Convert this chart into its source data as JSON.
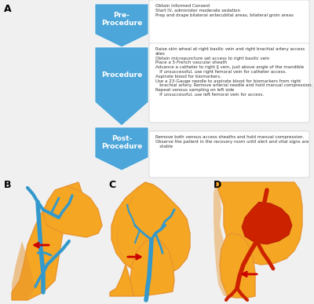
{
  "bg_color": "#f5f5f5",
  "label_A": "A",
  "label_B": "B",
  "label_C": "C",
  "label_D": "D",
  "chevron_color": "#4da6d9",
  "chevron_labels": [
    "Pre-\nProcedure",
    "Procedure",
    "Post-\nProcedure"
  ],
  "box_bg": "#ffffff",
  "box_text": [
    "Obtain Informed Consent\nStart IV, administer moderate sedation\nPrep and drape bilateral antecubital areas, bilateral groin areas",
    "Raise skin wheal at right basilic vein and right brachial artery access sites\nObtain micropuncture set access to right basilic vein\nPlace a 5-French vascular sheath\nAdvance a catheter to right IJ vein, just above angle of the mandible\n   If unsuccessful, use right femoral vein for catheter access.\nAspirate blood for biomarkers.\nUse a 23-Gauge needle to aspirate blood for biomarkers from right\n   brachial artery. Remove arterial needle and hold manual compression.\nRepeat venous sampling on left side\n   If unsuccessful, use left femoral vein for access.",
    "Remove both venous access sheaths and hold manual compression.\nObserve the patient in the recovery room until alert and vital signs are\n   stable"
  ],
  "red_arrow_color": "#cc0000",
  "vein_color": "#3399cc",
  "artery_color": "#cc2200",
  "skin_color": "#f5a623",
  "skin_shadow": "#e8952e"
}
